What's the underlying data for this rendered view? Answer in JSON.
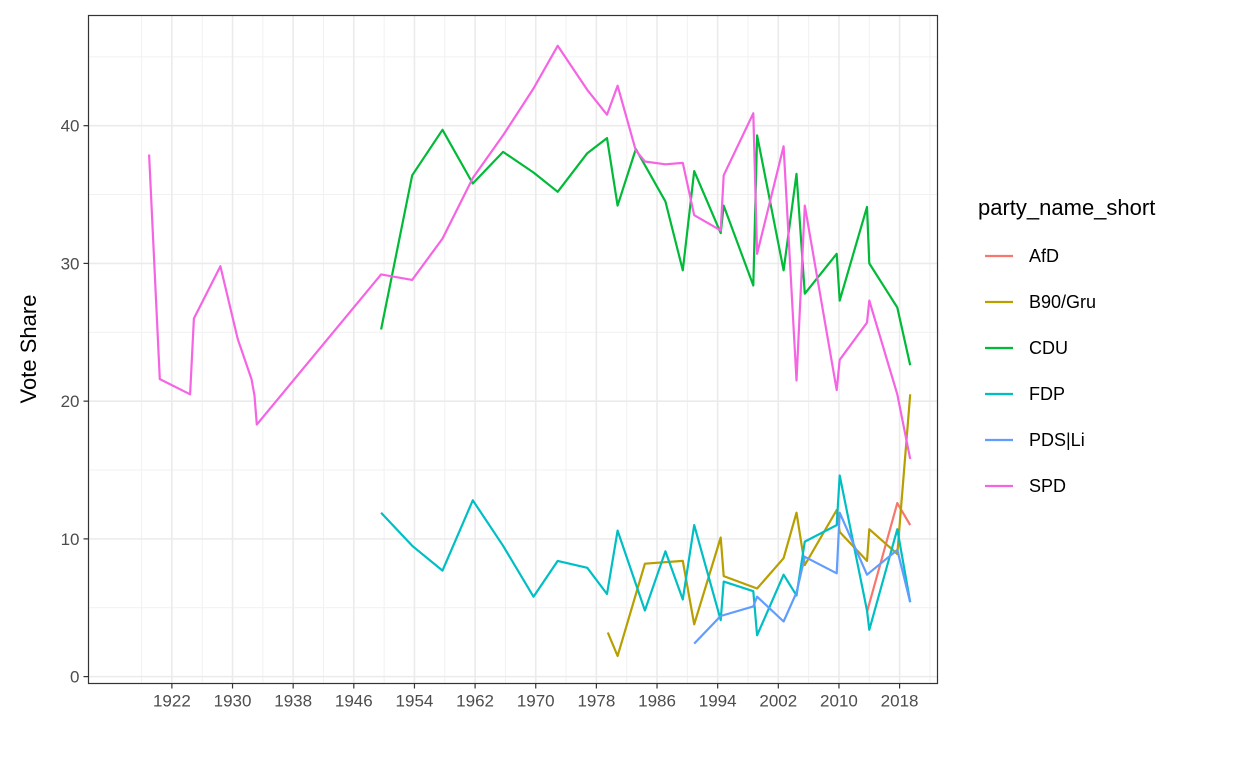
{
  "chart_data": {
    "type": "line",
    "title": "",
    "xlabel": "",
    "ylabel": "Vote Share",
    "xlim": [
      1911,
      2023
    ],
    "ylim": [
      -0.5,
      48
    ],
    "x_ticks": [
      1922,
      1930,
      1938,
      1946,
      1954,
      1962,
      1970,
      1978,
      1986,
      1994,
      2002,
      2010,
      2018
    ],
    "y_ticks": [
      0,
      10,
      20,
      30,
      40
    ],
    "grid": true,
    "legend": {
      "title": "party_name_short",
      "position": "right"
    },
    "series": [
      {
        "name": "AfD",
        "color": "#F8766D",
        "points": [
          [
            2013.7,
            4.7
          ],
          [
            2017.7,
            12.6
          ],
          [
            2019.4,
            11.0
          ]
        ]
      },
      {
        "name": "B90/Gru",
        "color": "#B79F00",
        "points": [
          [
            1979.5,
            3.2
          ],
          [
            1980.8,
            1.5
          ],
          [
            1984.4,
            8.2
          ],
          [
            1989.4,
            8.4
          ],
          [
            1990.9,
            3.8
          ],
          [
            1994.4,
            10.1
          ],
          [
            1994.8,
            7.3
          ],
          [
            1999.2,
            6.4
          ],
          [
            2002.7,
            8.6
          ],
          [
            2004.4,
            11.9
          ],
          [
            2005.5,
            8.1
          ],
          [
            2009.7,
            12.1
          ],
          [
            2010.1,
            10.5
          ],
          [
            2013.7,
            8.4
          ],
          [
            2014.0,
            10.7
          ],
          [
            2017.7,
            8.9
          ],
          [
            2019.4,
            20.5
          ]
        ]
      },
      {
        "name": "CDU",
        "color": "#00BA38",
        "points": [
          [
            1949.6,
            25.2
          ],
          [
            1953.7,
            36.4
          ],
          [
            1957.7,
            39.7
          ],
          [
            1961.7,
            35.8
          ],
          [
            1965.7,
            38.1
          ],
          [
            1969.7,
            36.6
          ],
          [
            1972.9,
            35.2
          ],
          [
            1976.8,
            38.0
          ],
          [
            1979.4,
            39.1
          ],
          [
            1980.8,
            34.2
          ],
          [
            1983.2,
            38.3
          ],
          [
            1987.1,
            34.5
          ],
          [
            1989.4,
            29.5
          ],
          [
            1990.9,
            36.7
          ],
          [
            1994.4,
            32.2
          ],
          [
            1994.8,
            34.2
          ],
          [
            1998.7,
            28.4
          ],
          [
            1999.2,
            39.3
          ],
          [
            2002.7,
            29.5
          ],
          [
            2004.4,
            36.5
          ],
          [
            2005.5,
            27.8
          ],
          [
            2009.7,
            30.7
          ],
          [
            2010.1,
            27.3
          ],
          [
            2013.7,
            34.1
          ],
          [
            2014.0,
            30.0
          ],
          [
            2017.7,
            26.8
          ],
          [
            2019.4,
            22.6
          ]
        ]
      },
      {
        "name": "FDP",
        "color": "#00BFC4",
        "points": [
          [
            1949.6,
            11.9
          ],
          [
            1953.7,
            9.5
          ],
          [
            1957.7,
            7.7
          ],
          [
            1961.7,
            12.8
          ],
          [
            1965.7,
            9.5
          ],
          [
            1969.7,
            5.8
          ],
          [
            1972.9,
            8.4
          ],
          [
            1976.8,
            7.9
          ],
          [
            1979.4,
            6.0
          ],
          [
            1980.8,
            10.6
          ],
          [
            1984.4,
            4.8
          ],
          [
            1987.1,
            9.1
          ],
          [
            1989.4,
            5.6
          ],
          [
            1990.9,
            11.0
          ],
          [
            1994.4,
            4.1
          ],
          [
            1994.8,
            6.9
          ],
          [
            1998.7,
            6.2
          ],
          [
            1999.2,
            3.0
          ],
          [
            2002.7,
            7.4
          ],
          [
            2004.4,
            5.9
          ],
          [
            2005.5,
            9.8
          ],
          [
            2009.7,
            11.0
          ],
          [
            2010.1,
            14.6
          ],
          [
            2013.7,
            4.8
          ],
          [
            2014.0,
            3.4
          ],
          [
            2017.7,
            10.7
          ],
          [
            2019.4,
            5.4
          ]
        ]
      },
      {
        "name": "PDS|Li",
        "color": "#619CFF",
        "points": [
          [
            1990.9,
            2.4
          ],
          [
            1994.4,
            4.4
          ],
          [
            1998.7,
            5.1
          ],
          [
            1999.2,
            5.8
          ],
          [
            2002.7,
            4.0
          ],
          [
            2004.4,
            6.1
          ],
          [
            2005.5,
            8.7
          ],
          [
            2009.7,
            7.5
          ],
          [
            2010.1,
            11.9
          ],
          [
            2013.7,
            7.4
          ],
          [
            2017.7,
            9.2
          ],
          [
            2019.4,
            5.4
          ]
        ]
      },
      {
        "name": "SPD",
        "color": "#F564E3",
        "points": [
          [
            1919.0,
            37.9
          ],
          [
            1920.4,
            21.6
          ],
          [
            1924.4,
            20.5
          ],
          [
            1924.9,
            26.0
          ],
          [
            1928.4,
            29.8
          ],
          [
            1930.7,
            24.5
          ],
          [
            1932.5,
            21.6
          ],
          [
            1932.9,
            20.4
          ],
          [
            1933.2,
            18.3
          ],
          [
            1949.6,
            29.2
          ],
          [
            1953.7,
            28.8
          ],
          [
            1957.7,
            31.8
          ],
          [
            1961.7,
            36.2
          ],
          [
            1965.7,
            39.3
          ],
          [
            1969.7,
            42.7
          ],
          [
            1972.9,
            45.8
          ],
          [
            1976.8,
            42.6
          ],
          [
            1979.4,
            40.8
          ],
          [
            1980.8,
            42.9
          ],
          [
            1983.2,
            38.2
          ],
          [
            1984.4,
            37.4
          ],
          [
            1987.1,
            37.2
          ],
          [
            1989.4,
            37.3
          ],
          [
            1990.9,
            33.5
          ],
          [
            1994.4,
            32.4
          ],
          [
            1994.8,
            36.4
          ],
          [
            1998.7,
            40.9
          ],
          [
            1999.2,
            30.7
          ],
          [
            2002.7,
            38.5
          ],
          [
            2004.4,
            21.5
          ],
          [
            2005.5,
            34.2
          ],
          [
            2009.7,
            20.8
          ],
          [
            2010.1,
            23.0
          ],
          [
            2013.7,
            25.7
          ],
          [
            2014.0,
            27.3
          ],
          [
            2017.7,
            20.5
          ],
          [
            2019.4,
            15.8
          ]
        ]
      }
    ]
  }
}
